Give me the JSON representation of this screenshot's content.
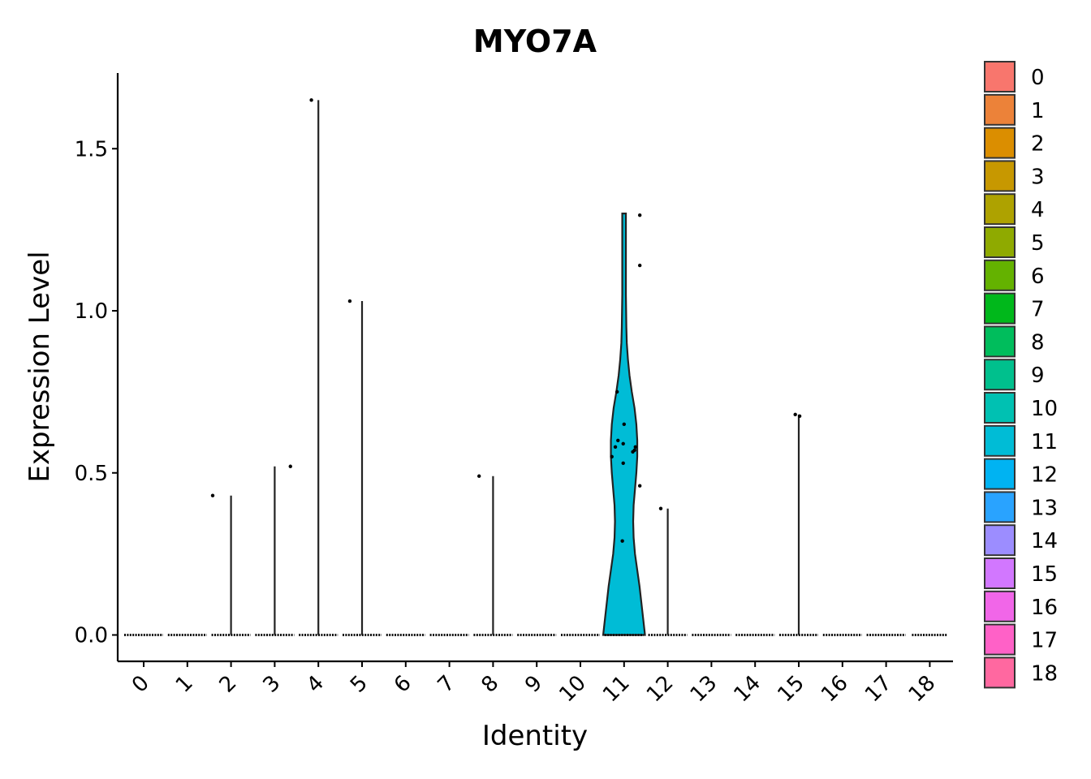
{
  "chart_data": {
    "type": "violin",
    "title": "MYO7A",
    "xlabel": "Identity",
    "ylabel": "Expression Level",
    "categories": [
      "0",
      "1",
      "2",
      "3",
      "4",
      "5",
      "6",
      "7",
      "8",
      "9",
      "10",
      "11",
      "12",
      "13",
      "14",
      "15",
      "16",
      "17",
      "18"
    ],
    "y_ticks": [
      "0.0",
      "0.5",
      "1.0",
      "1.5"
    ],
    "ylim": [
      -0.08,
      1.73
    ],
    "max_values": [
      0,
      0,
      0.43,
      0.52,
      1.65,
      1.03,
      0,
      0,
      0.49,
      0,
      0,
      1.3,
      0.39,
      0,
      0,
      0.68,
      0,
      0,
      0
    ],
    "outliers": [
      {
        "group": "2",
        "x_offset": -0.42,
        "y": 0.43
      },
      {
        "group": "3",
        "x_offset": 0.36,
        "y": 0.52
      },
      {
        "group": "4",
        "x_offset": -0.16,
        "y": 1.65
      },
      {
        "group": "5",
        "x_offset": -0.28,
        "y": 1.03
      },
      {
        "group": "8",
        "x_offset": -0.32,
        "y": 0.49
      },
      {
        "group": "12",
        "x_offset": -0.16,
        "y": 0.39
      },
      {
        "group": "15",
        "x_offset": -0.08,
        "y": 0.68
      },
      {
        "group": "15",
        "x_offset": 0.02,
        "y": 0.675
      }
    ],
    "cluster11_points": [
      {
        "dx": -0.16,
        "y": 0.75
      },
      {
        "dx": -0.2,
        "y": 0.58
      },
      {
        "dx": -0.14,
        "y": 0.6
      },
      {
        "dx": -0.28,
        "y": 0.55
      },
      {
        "dx": 0.0,
        "y": 0.65
      },
      {
        "dx": -0.02,
        "y": 0.59
      },
      {
        "dx": 0.26,
        "y": 0.58
      },
      {
        "dx": 0.24,
        "y": 0.57
      },
      {
        "dx": 0.2,
        "y": 0.565
      },
      {
        "dx": 0.36,
        "y": 1.295
      },
      {
        "dx": 0.36,
        "y": 1.14
      },
      {
        "dx": 0.36,
        "y": 0.46
      },
      {
        "dx": -0.02,
        "y": 0.53
      },
      {
        "dx": -0.04,
        "y": 0.29
      }
    ],
    "cluster11_violin": [
      [
        0.0,
        0.46
      ],
      [
        0.05,
        0.42
      ],
      [
        0.1,
        0.38
      ],
      [
        0.15,
        0.34
      ],
      [
        0.2,
        0.29
      ],
      [
        0.25,
        0.24
      ],
      [
        0.3,
        0.21
      ],
      [
        0.35,
        0.2
      ],
      [
        0.4,
        0.21
      ],
      [
        0.45,
        0.24
      ],
      [
        0.5,
        0.27
      ],
      [
        0.55,
        0.29
      ],
      [
        0.6,
        0.29
      ],
      [
        0.65,
        0.27
      ],
      [
        0.7,
        0.23
      ],
      [
        0.75,
        0.17
      ],
      [
        0.8,
        0.12
      ],
      [
        0.85,
        0.085
      ],
      [
        0.9,
        0.06
      ],
      [
        0.95,
        0.05
      ],
      [
        1.0,
        0.045
      ],
      [
        1.05,
        0.04
      ],
      [
        1.1,
        0.04
      ],
      [
        1.15,
        0.04
      ],
      [
        1.2,
        0.04
      ],
      [
        1.25,
        0.04
      ],
      [
        1.3,
        0.04
      ]
    ],
    "colors": [
      "#F8766D",
      "#EC8239",
      "#DB8E00",
      "#C79800",
      "#AEA200",
      "#8FAA00",
      "#64B200",
      "#00B81B",
      "#00BD5C",
      "#00C08D",
      "#00C1B2",
      "#00BCD6",
      "#00B3F2",
      "#29A3FF",
      "#9C8DFF",
      "#D277FF",
      "#F166E8",
      "#FF61C7",
      "#FF68A0"
    ],
    "legend_position": "right"
  }
}
